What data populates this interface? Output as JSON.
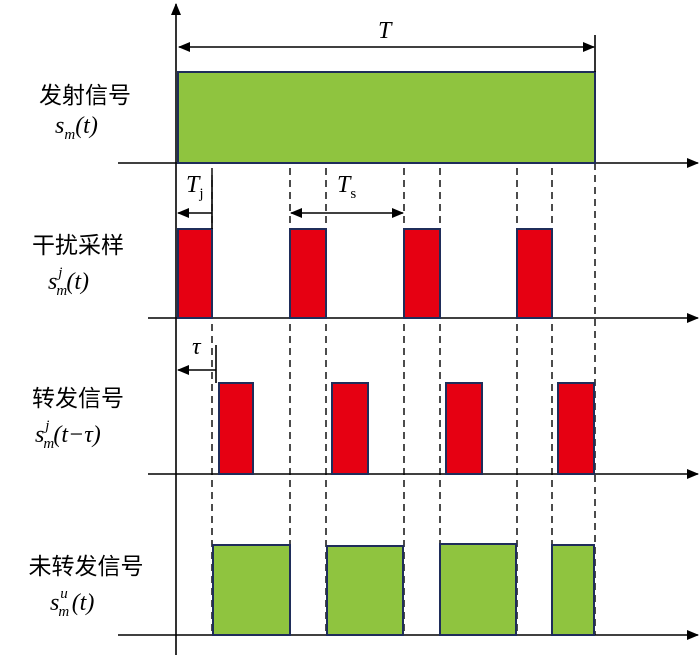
{
  "rows": [
    {
      "label": "发射信号",
      "symbol": {
        "base": "s",
        "sub": "m",
        "arg": "(t)"
      }
    },
    {
      "label": "干扰采样",
      "symbol": {
        "base": "s",
        "sub": "m",
        "sup": "j",
        "arg": "(t)"
      }
    },
    {
      "label": "转发信号",
      "symbol": {
        "base": "s",
        "sub": "m",
        "sup": "j",
        "arg": "(t−τ)"
      }
    },
    {
      "label": "未转发信号",
      "symbol": {
        "base": "s",
        "sub": "m",
        "sup": "u",
        "arg": "(t)"
      }
    }
  ],
  "annotations": {
    "period": "T",
    "jam_width": {
      "base": "T",
      "sub": "j"
    },
    "interval": {
      "base": "T",
      "sub": "s"
    },
    "delay": "τ"
  }
}
